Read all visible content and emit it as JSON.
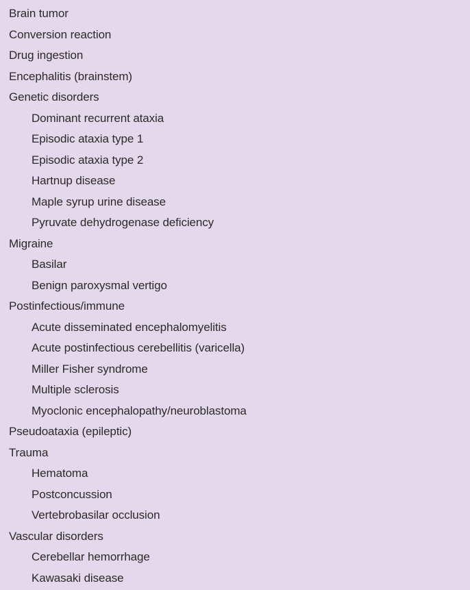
{
  "list": {
    "items": [
      {
        "label": "Brain tumor",
        "level": 0
      },
      {
        "label": "Conversion reaction",
        "level": 0
      },
      {
        "label": "Drug ingestion",
        "level": 0
      },
      {
        "label": "Encephalitis (brainstem)",
        "level": 0
      },
      {
        "label": "Genetic disorders",
        "level": 0
      },
      {
        "label": "Dominant recurrent ataxia",
        "level": 1
      },
      {
        "label": "Episodic ataxia type 1",
        "level": 1
      },
      {
        "label": "Episodic ataxia type 2",
        "level": 1
      },
      {
        "label": "Hartnup disease",
        "level": 1
      },
      {
        "label": "Maple syrup urine disease",
        "level": 1
      },
      {
        "label": "Pyruvate dehydrogenase deficiency",
        "level": 1
      },
      {
        "label": "Migraine",
        "level": 0
      },
      {
        "label": "Basilar",
        "level": 1
      },
      {
        "label": "Benign paroxysmal vertigo",
        "level": 1
      },
      {
        "label": "Postinfectious/immune",
        "level": 0
      },
      {
        "label": "Acute disseminated encephalomyelitis",
        "level": 1
      },
      {
        "label": "Acute postinfectious cerebellitis (varicella)",
        "level": 1
      },
      {
        "label": "Miller Fisher syndrome",
        "level": 1
      },
      {
        "label": "Multiple sclerosis",
        "level": 1
      },
      {
        "label": "Myoclonic encephalopathy/neuroblastoma",
        "level": 1
      },
      {
        "label": "Pseudoataxia (epileptic)",
        "level": 0
      },
      {
        "label": "Trauma",
        "level": 0
      },
      {
        "label": "Hematoma",
        "level": 1
      },
      {
        "label": "Postconcussion",
        "level": 1
      },
      {
        "label": "Vertebrobasilar occlusion",
        "level": 1
      },
      {
        "label": "Vascular disorders",
        "level": 0
      },
      {
        "label": "Cerebellar hemorrhage",
        "level": 1
      },
      {
        "label": "Kawasaki disease",
        "level": 1
      }
    ]
  }
}
